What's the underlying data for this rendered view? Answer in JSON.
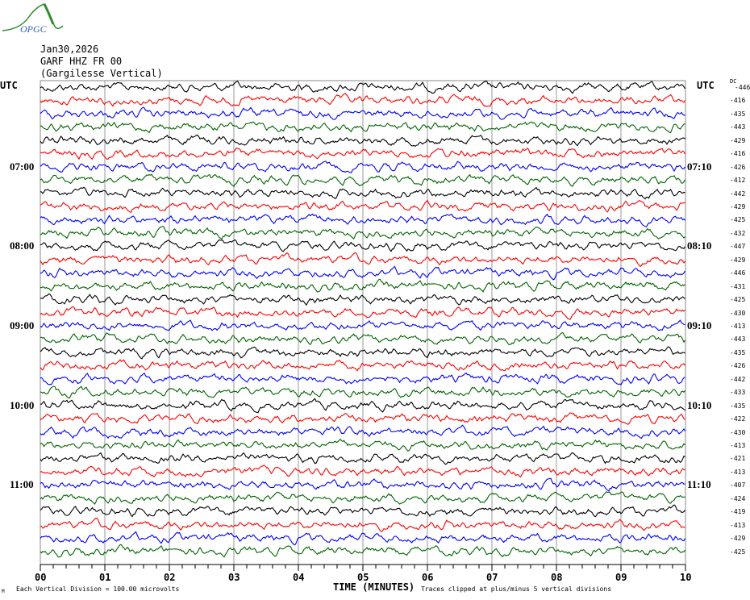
{
  "logo": {
    "text": "OPGC"
  },
  "header": {
    "date": "Jan30,2026",
    "station": "GARF HHZ FR 00",
    "location": "(Gargilesse Vertical)"
  },
  "left_axis_title": "UTC",
  "right_axis_title": "UTC",
  "dc_title": "DC",
  "footer": {
    "scale_note": "Each Vertical Division =  100.00 microvolts",
    "clip_note": "Traces clipped at plus/minus 5 vertical divisions",
    "corner_mark": "M"
  },
  "chart_data": {
    "type": "line",
    "subtype": "helicorder",
    "xlabel": "TIME (MINUTES)",
    "xlim": [
      0,
      10
    ],
    "x_tick_labels": [
      "00",
      "01",
      "02",
      "03",
      "04",
      "05",
      "06",
      "07",
      "08",
      "09",
      "10"
    ],
    "minor_tick_interval_minutes": 0.2,
    "grid": "vertical lines every minute",
    "trace_duration_minutes": 10,
    "trace_colors": [
      "#000000",
      "#ff0000",
      "#0000ff",
      "#006400"
    ],
    "left_time_labels": [
      "07:00",
      "08:00",
      "09:00",
      "10:00",
      "11:00"
    ],
    "right_time_labels": [
      "07:10",
      "08:10",
      "09:10",
      "10:10",
      "11:10"
    ],
    "first_trace_start": "06:00",
    "trace_count": 36,
    "dc_offsets": [
      -446,
      -416,
      -435,
      -443,
      -429,
      -416,
      -426,
      -412,
      -442,
      -429,
      -425,
      -432,
      -447,
      -429,
      -446,
      -431,
      -425,
      -430,
      -413,
      -443,
      -435,
      -426,
      -442,
      -433,
      -435,
      -422,
      -430,
      -413,
      -421,
      -413,
      -407,
      -424,
      -419,
      -413,
      -429,
      -425
    ]
  }
}
